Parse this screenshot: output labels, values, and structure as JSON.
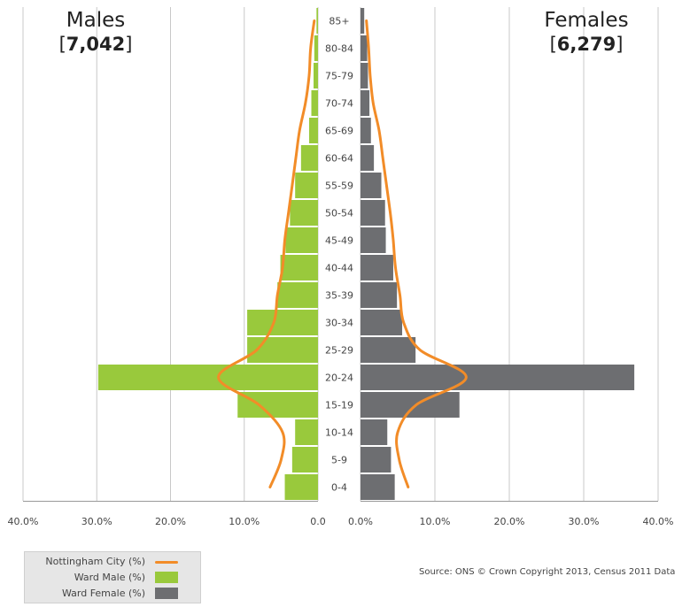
{
  "titles": {
    "males": {
      "name": "Males",
      "open": "[",
      "count": "7,042",
      "close": "]"
    },
    "females": {
      "name": "Females",
      "open": "[",
      "count": "6,279",
      "close": "]"
    }
  },
  "legend": {
    "items": [
      {
        "label": "Nottingham City (%)",
        "kind": "line",
        "color": "#f28c28"
      },
      {
        "label": "Ward Male (%)",
        "kind": "box",
        "color": "#99c93c"
      },
      {
        "label": "Ward Female (%)",
        "kind": "box",
        "color": "#6d6e71"
      }
    ]
  },
  "source": "Source: ONS © Crown Copyright 2013, Census 2011 Data",
  "chart_data": {
    "type": "bar",
    "subtype": "population-pyramid",
    "categories": [
      "0-4",
      "5-9",
      "10-14",
      "15-19",
      "20-24",
      "25-29",
      "30-34",
      "35-39",
      "40-44",
      "45-49",
      "50-54",
      "55-59",
      "60-64",
      "65-69",
      "70-74",
      "75-79",
      "80-84",
      "85+"
    ],
    "series": [
      {
        "name": "Ward Male (%)",
        "side": "left",
        "color": "#99c93c",
        "values": [
          4.5,
          3.5,
          3.1,
          10.9,
          29.8,
          9.6,
          9.6,
          5.5,
          5.1,
          4.4,
          3.8,
          3.1,
          2.3,
          1.2,
          0.9,
          0.6,
          0.5,
          0.2
        ]
      },
      {
        "name": "Ward Female (%)",
        "side": "right",
        "color": "#6d6e71",
        "values": [
          4.6,
          4.1,
          3.6,
          13.3,
          36.8,
          7.4,
          5.6,
          4.9,
          4.4,
          3.4,
          3.3,
          2.8,
          1.8,
          1.4,
          1.2,
          1.0,
          0.9,
          0.5
        ]
      },
      {
        "name": "Nottingham City (%)",
        "side": "left",
        "color": "#f28c28",
        "values": [
          6.5,
          5.0,
          4.8,
          8.0,
          13.5,
          8.3,
          6.0,
          5.5,
          4.8,
          4.5,
          4.0,
          3.5,
          3.0,
          2.5,
          1.7,
          1.2,
          1.0,
          0.5
        ]
      },
      {
        "name": "Nottingham City (%)",
        "side": "right",
        "color": "#f28c28",
        "values": [
          6.4,
          5.2,
          5.0,
          7.5,
          14.2,
          8.0,
          5.8,
          5.3,
          4.7,
          4.4,
          4.0,
          3.5,
          3.0,
          2.5,
          1.7,
          1.3,
          1.1,
          0.8
        ]
      }
    ],
    "xlim": [
      0,
      40
    ],
    "x_ticks_left": [
      "40.0%",
      "30.0%",
      "20.0%",
      "10.0%",
      "0.0"
    ],
    "x_ticks_right": [
      "0.0%",
      "10.0%",
      "20.0%",
      "30.0%",
      "40.0%"
    ],
    "grid": true
  }
}
